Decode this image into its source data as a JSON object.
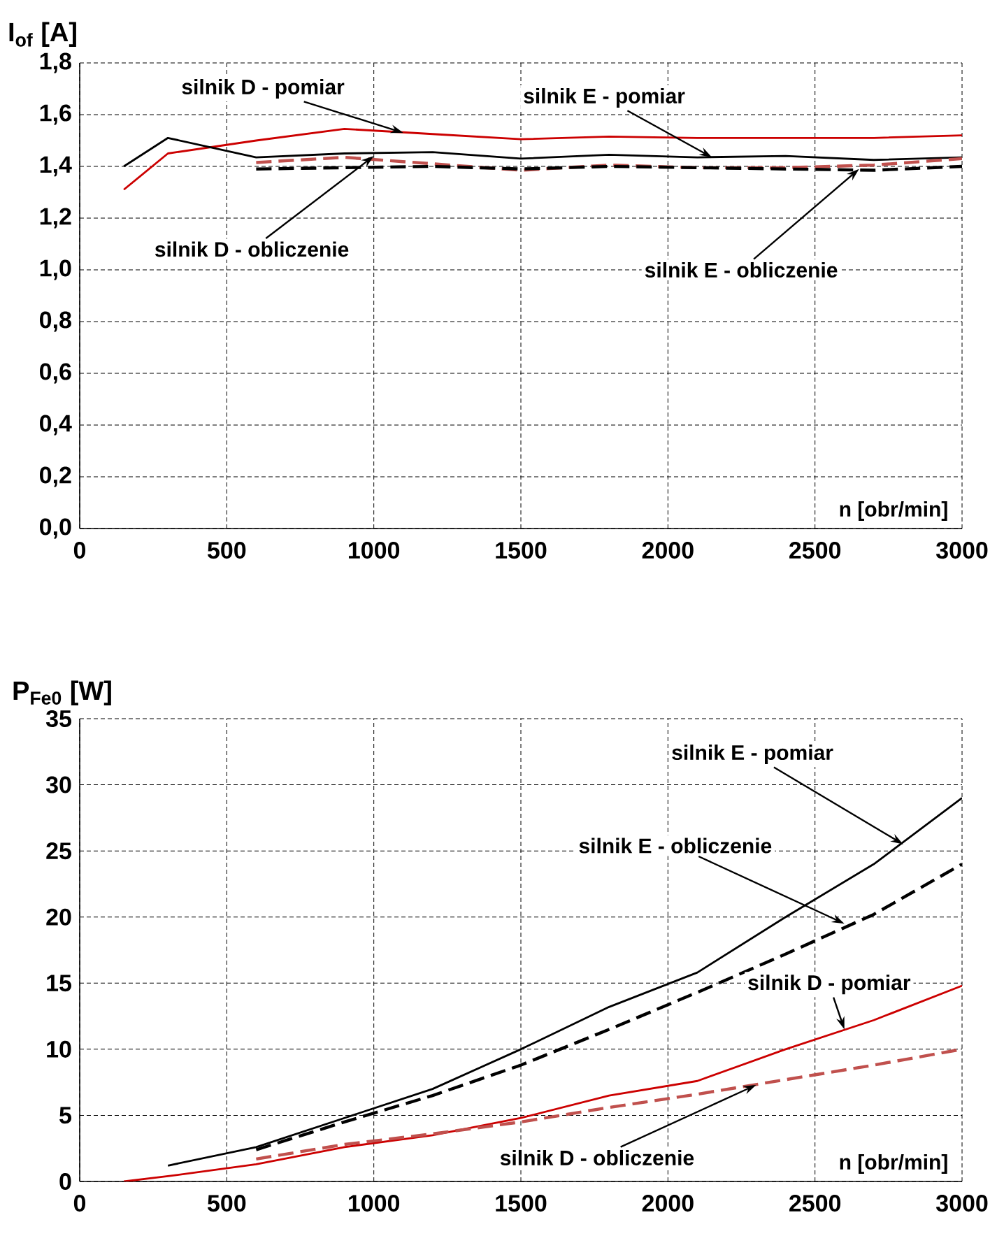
{
  "chart_data": [
    {
      "type": "line",
      "ylabel": "I$_{of}$ [A]",
      "xlabel": "n [obr/min]",
      "grid": true,
      "xlim": [
        0,
        3000
      ],
      "xticks": [
        0,
        500,
        1000,
        1500,
        2000,
        2500,
        3000
      ],
      "ylim": [
        0,
        1.8
      ],
      "yticks": [
        {
          "value": 0,
          "label": "0,0"
        },
        {
          "value": 0.2,
          "label": "0,2"
        },
        {
          "value": 0.4,
          "label": "0,4"
        },
        {
          "value": 0.6,
          "label": "0,6"
        },
        {
          "value": 0.8,
          "label": "0,8"
        },
        {
          "value": 1.0,
          "label": "1,0"
        },
        {
          "value": 1.2,
          "label": "1,2"
        },
        {
          "value": 1.4,
          "label": "1,4"
        },
        {
          "value": 1.6,
          "label": "1,6"
        },
        {
          "value": 1.8,
          "label": "1,8"
        }
      ],
      "series": [
        {
          "color": "#cc0000",
          "x": [
            150,
            300,
            600,
            900,
            1200,
            1500,
            1800,
            2100,
            2400,
            2700,
            3000
          ],
          "values": [
            1.31,
            1.45,
            1.5,
            1.545,
            1.525,
            1.505,
            1.515,
            1.51,
            1.51,
            1.51,
            1.52
          ]
        },
        {
          "color": "#000000",
          "x": [
            150,
            300,
            600,
            900,
            1200,
            1500,
            1800,
            2100,
            2400,
            2700,
            3000
          ],
          "values": [
            1.4,
            1.51,
            1.435,
            1.45,
            1.455,
            1.43,
            1.445,
            1.435,
            1.44,
            1.425,
            1.435
          ]
        },
        {
          "color": "#c0504d",
          "line_style": "dashed",
          "x": [
            600,
            900,
            1200,
            1500,
            1800,
            2100,
            2400,
            2700,
            3000
          ],
          "values": [
            1.415,
            1.435,
            1.41,
            1.385,
            1.405,
            1.395,
            1.395,
            1.405,
            1.43
          ]
        },
        {
          "color": "#000000",
          "line_style": "dashed",
          "x": [
            600,
            900,
            1200,
            1500,
            1800,
            2100,
            2400,
            2700,
            3000
          ],
          "values": [
            1.39,
            1.395,
            1.4,
            1.39,
            1.4,
            1.395,
            1.39,
            1.385,
            1.4
          ]
        }
      ],
      "annotations": [
        {
          "text": "silnik D - pomiar",
          "x": 1100,
          "y": 1.53
        },
        {
          "text": "silnik E - pomiar",
          "x": 2150,
          "y": 1.435
        },
        {
          "text": "silnik D - obliczenie",
          "x": 1000,
          "y": 1.44
        },
        {
          "text": "silnik E - obliczenie",
          "x": 2650,
          "y": 1.39
        }
      ]
    },
    {
      "type": "line",
      "ylabel": "P$_{Fe0}$ [W]",
      "xlabel": "n [obr/min]",
      "grid": true,
      "xlim": [
        0,
        3000
      ],
      "xticks": [
        0,
        500,
        1000,
        1500,
        2000,
        2500,
        3000
      ],
      "ylim": [
        0,
        35
      ],
      "yticks": [
        0,
        5,
        10,
        15,
        20,
        25,
        30,
        35
      ],
      "series": [
        {
          "color": "#000000",
          "x": [
            300,
            600,
            900,
            1200,
            1500,
            1800,
            2100,
            2400,
            2700,
            3000
          ],
          "values": [
            1.2,
            2.6,
            4.8,
            7.0,
            10.0,
            13.2,
            15.8,
            20.0,
            24.0,
            29.0
          ]
        },
        {
          "color": "#000000",
          "line_style": "dashed",
          "x": [
            600,
            900,
            1200,
            1500,
            1800,
            2100,
            2400,
            2700,
            3000
          ],
          "values": [
            2.4,
            4.5,
            6.5,
            8.8,
            11.5,
            14.3,
            17.2,
            20.2,
            24.0
          ]
        },
        {
          "color": "#cc0000",
          "x": [
            150,
            300,
            600,
            900,
            1200,
            1500,
            1800,
            2100,
            2400,
            2700,
            3000
          ],
          "values": [
            0,
            0.4,
            1.3,
            2.6,
            3.5,
            4.8,
            6.5,
            7.6,
            10.0,
            12.2,
            14.8
          ]
        },
        {
          "color": "#c0504d",
          "line_style": "dashed",
          "x": [
            600,
            900,
            1200,
            1500,
            1800,
            2100,
            2400,
            2700,
            3000
          ],
          "values": [
            1.7,
            2.8,
            3.6,
            4.5,
            5.6,
            6.6,
            7.7,
            8.8,
            10.0
          ]
        }
      ],
      "annotations": [
        {
          "text": "silnik E - pomiar",
          "x": 2800,
          "y": 25.5
        },
        {
          "text": "silnik E - obliczenie",
          "x": 2600,
          "y": 19.5
        },
        {
          "text": "silnik D - pomiar",
          "x": 2600,
          "y": 11.5
        },
        {
          "text": "silnik D - obliczenie",
          "x": 2300,
          "y": 7.3
        }
      ]
    }
  ]
}
